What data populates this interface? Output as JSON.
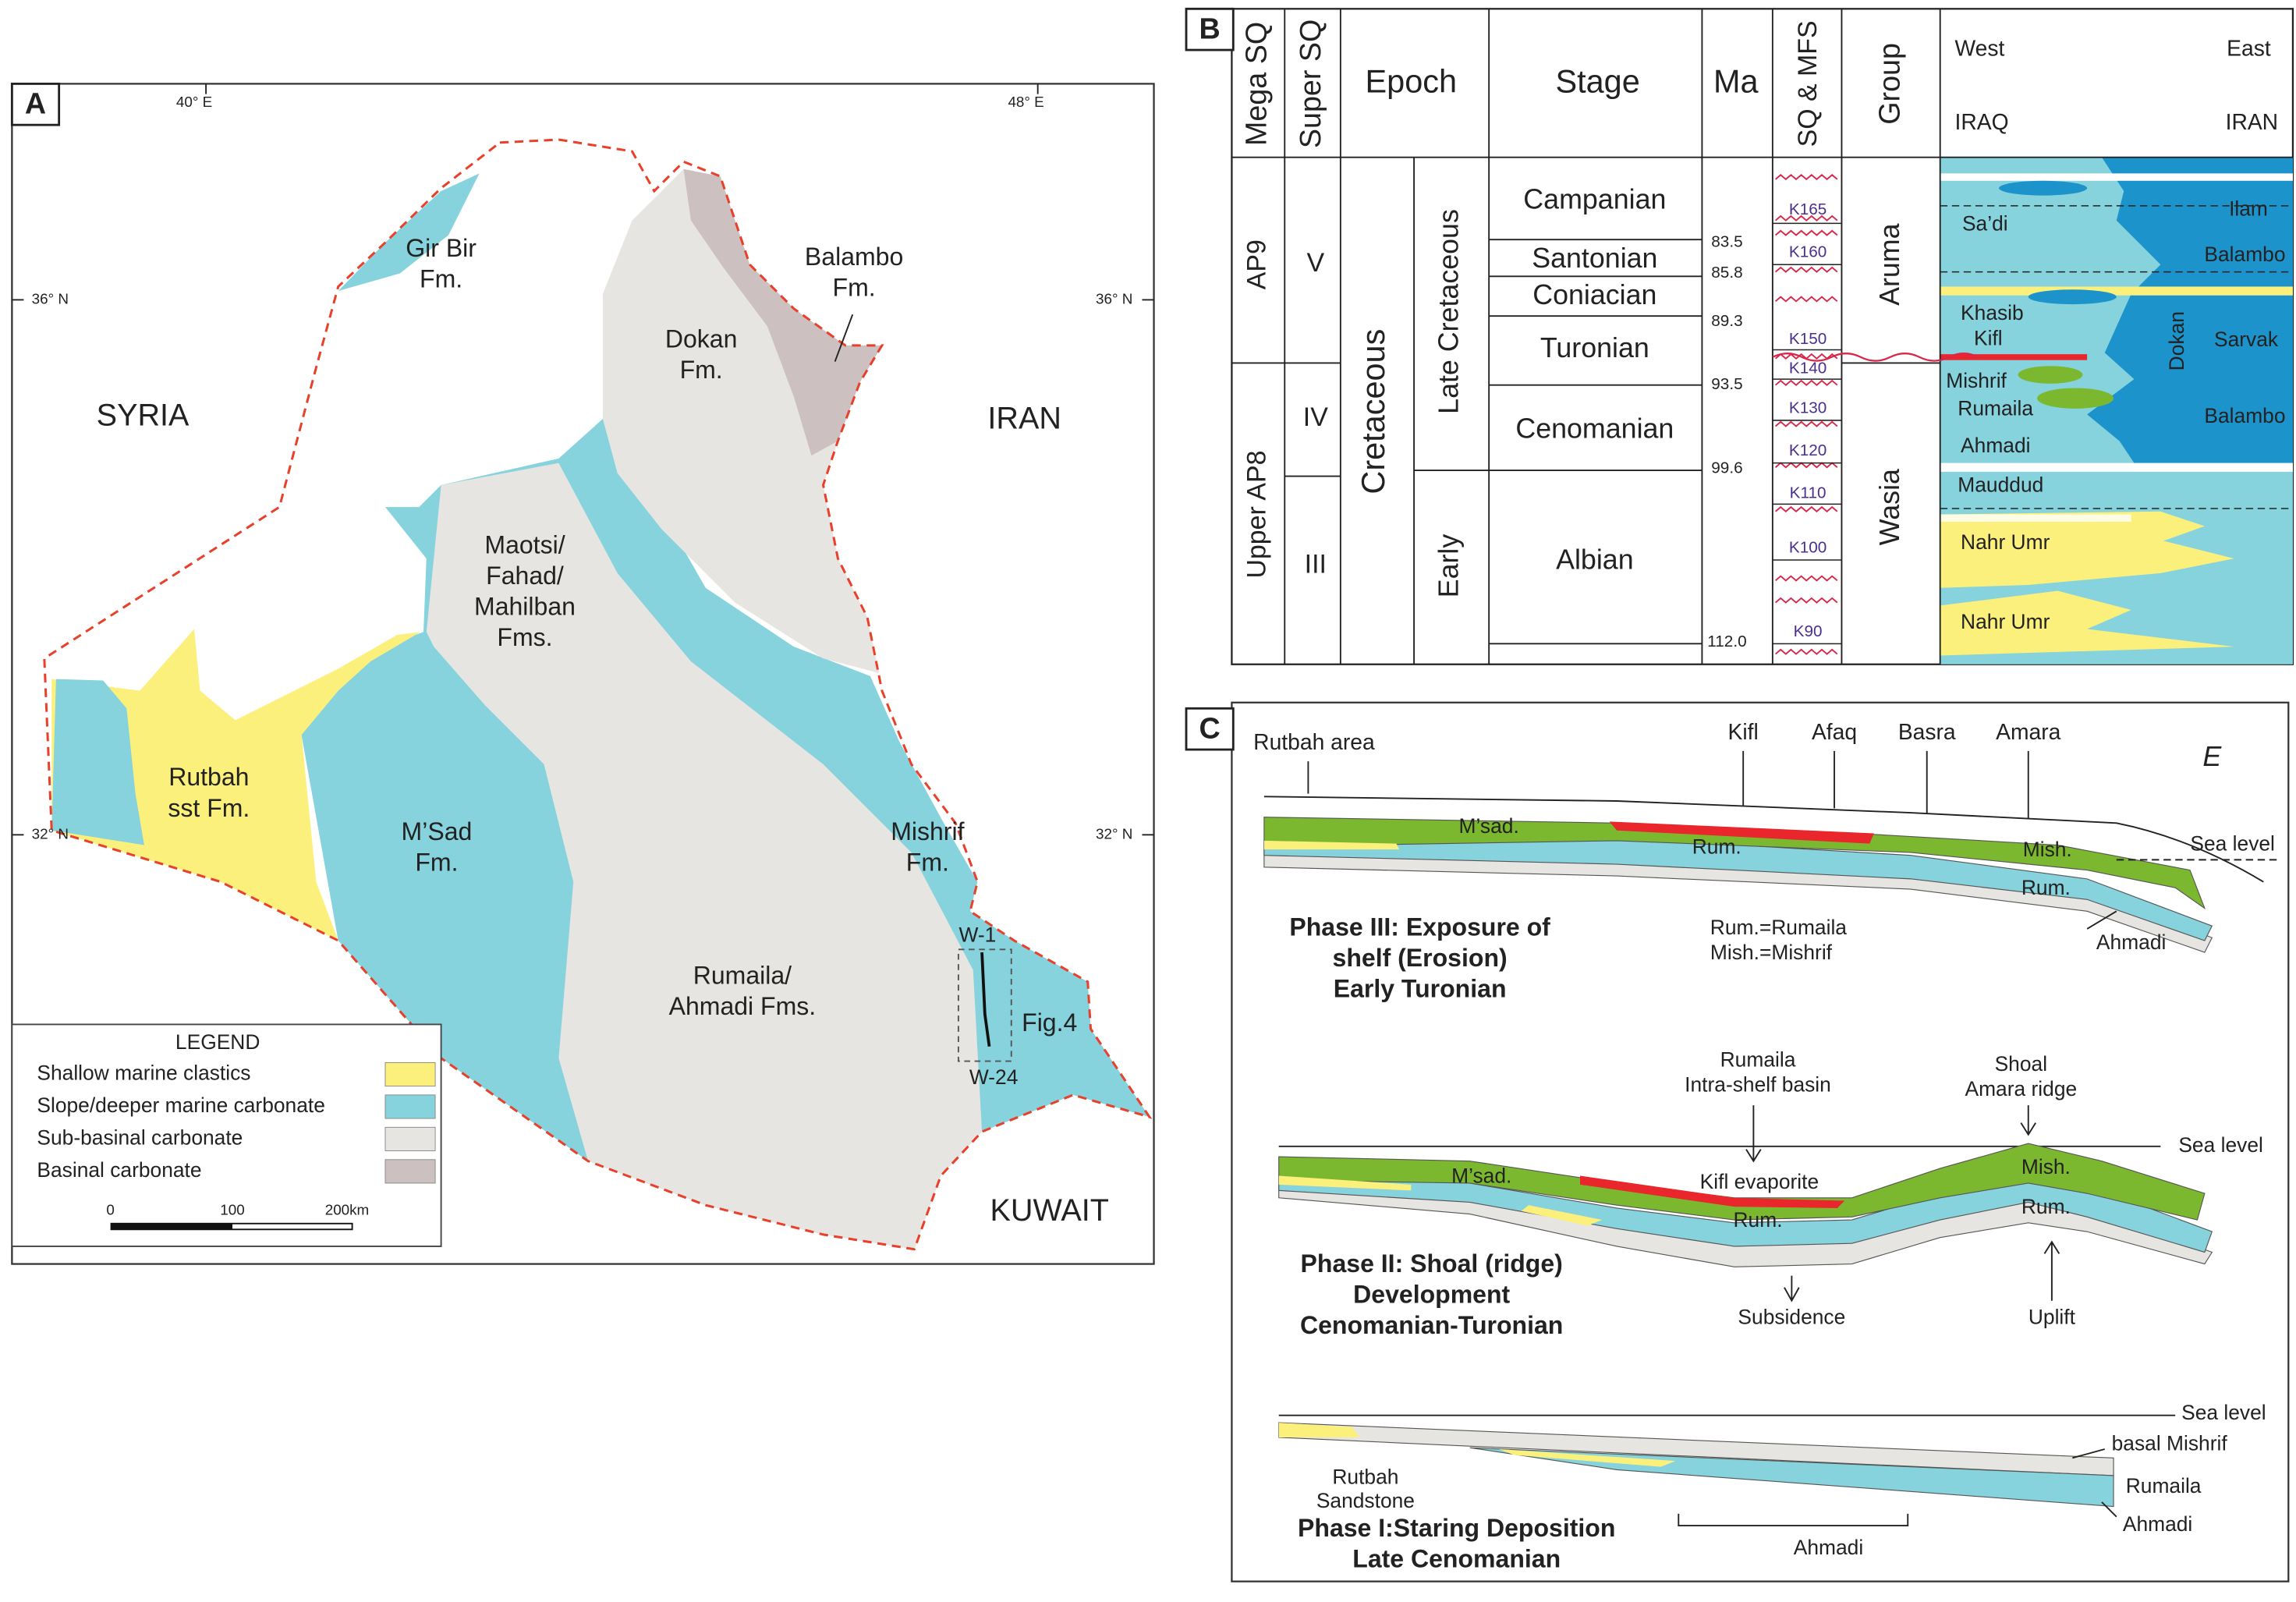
{
  "panel_a": {
    "label": "A",
    "longitudes": [
      "40° E",
      "48° E"
    ],
    "latitudes": [
      "36° N",
      "32° N"
    ],
    "countries": [
      "SYRIA",
      "IRAN",
      "KUWAIT"
    ],
    "formations": [
      [
        "Gir Bir",
        "Fm."
      ],
      [
        "Balambo",
        "Fm."
      ],
      [
        "Dokan",
        "Fm."
      ],
      [
        "Maotsi/",
        "Fahad/",
        "Mahilban",
        "Fms."
      ],
      [
        "Rutbah",
        "sst Fm."
      ],
      [
        "M’Sad",
        "Fm."
      ],
      [
        "Mishrif",
        "Fm."
      ],
      [
        "Rumaila/",
        "Ahmadi Fms."
      ]
    ],
    "wells": [
      "W-1",
      "W-24"
    ],
    "figure_ref": "Fig.4",
    "legend": {
      "title": "LEGEND",
      "items": [
        {
          "label": "Shallow marine clastics",
          "color": "#fcf07c"
        },
        {
          "label": "Slope/deeper marine carbonate",
          "color": "#86d2dd"
        },
        {
          "label": "Sub-basinal carbonate",
          "color": "#e6e5e1"
        },
        {
          "label": "Basinal carbonate",
          "color": "#cdc0c0"
        }
      ]
    },
    "scale_bar": [
      "0",
      "100",
      "200km"
    ]
  },
  "panel_b": {
    "label": "B",
    "headers": [
      "Mega SQ",
      "Super SQ",
      "Epoch",
      "Stage",
      "Ma",
      "SQ & MFS",
      "Group"
    ],
    "section_header": {
      "west": "West",
      "east": "East",
      "west_country": "IRAQ",
      "east_country": "IRAN"
    },
    "mega_sq": [
      "AP9",
      "Upper AP8"
    ],
    "super_sq": [
      "V",
      "IV",
      "III"
    ],
    "period": "Cretaceous",
    "epochs": [
      "Late Cretaceous",
      "Early"
    ],
    "stages": [
      "Campanian",
      "Santonian",
      "Coniacian",
      "Turonian",
      "Cenomanian",
      "Albian"
    ],
    "ages": [
      "83.5",
      "85.8",
      "89.3",
      "93.5",
      "99.6",
      "112.0"
    ],
    "sequences": [
      "K165",
      "K160",
      "K150",
      "K140",
      "K130",
      "K120",
      "K110",
      "K100",
      "K90"
    ],
    "groups": [
      "Aruma",
      "Wasia"
    ],
    "units": [
      "Sa’di",
      "Ilam",
      "Balambo",
      "Khasib",
      "Kifl",
      "Dokan",
      "Sarvak",
      "Mishrif",
      "Rumaila",
      "Balambo",
      "Ahmadi",
      "Mauddud",
      "Nahr Umr",
      "Nahr Umr"
    ]
  },
  "panel_c": {
    "label": "C",
    "locations": [
      "Rutbah area",
      "Kifl",
      "Afaq",
      "Basra",
      "Amara"
    ],
    "direction": "E",
    "phases": [
      {
        "title": [
          "Phase III: Exposure of",
          "shelf (Erosion)",
          "Early Turonian"
        ],
        "labels": [
          "Sea level",
          "M’sad.",
          "Rum.",
          "Mish.",
          "Rum.",
          "Rum.=Rumaila",
          "Mish.=Mishrif",
          "Ahmadi"
        ]
      },
      {
        "title": [
          "Phase II: Shoal (ridge)",
          "Development",
          "Cenomanian-Turonian"
        ],
        "labels": [
          "Rumaila",
          "Intra-shelf basin",
          "Shoal",
          "Amara ridge",
          "Sea level",
          "M’sad.",
          "Kifl evaporite",
          "Mish.",
          "Rum.",
          "Rum.",
          "Subsidence",
          "Uplift"
        ]
      },
      {
        "title": [
          "Phase I:Staring Deposition",
          "Late Cenomanian"
        ],
        "labels": [
          "Sea level",
          "basal Mishrif",
          "Rumaila",
          "Ahmadi",
          "Rutbah",
          "Sandstone",
          "Ahmadi"
        ]
      }
    ]
  }
}
